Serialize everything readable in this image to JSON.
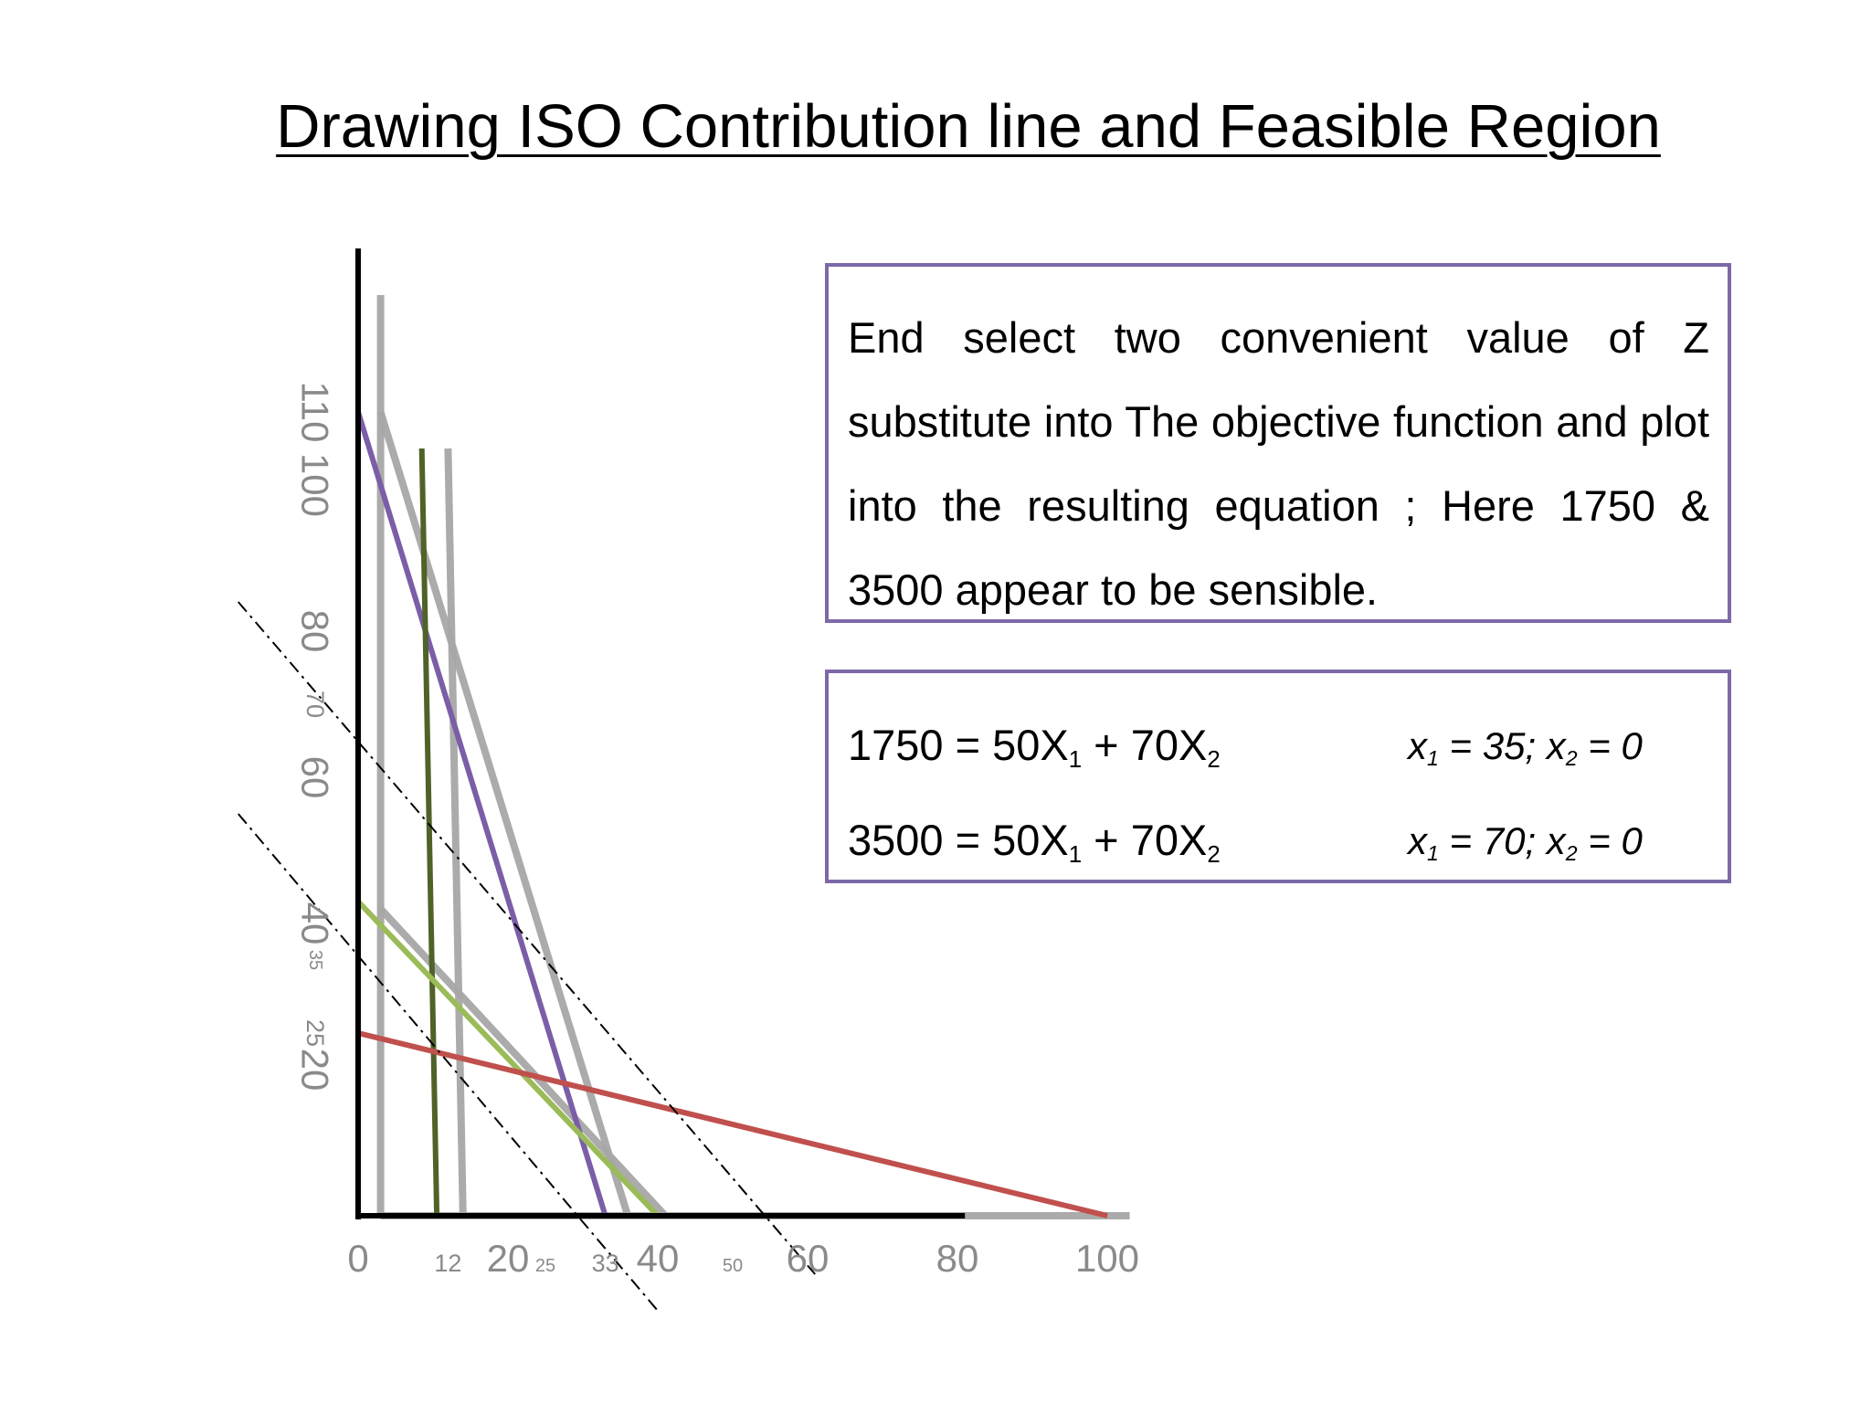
{
  "title": "Drawing ISO Contribution line and Feasible Region",
  "note": "End select two convenient value of Z substitute into The objective function and plot into the resulting equation ; Here 1750 & 3500 appear to be sensible.",
  "equations": [
    {
      "lhs": "1750 = 50X",
      "sub1": "1",
      "mid": " + 70X",
      "sub2": "2",
      "s_a": "x",
      "s_sub1": "1",
      "s_b": " = 35; x",
      "s_sub2": "2",
      "s_c": "= 0"
    },
    {
      "lhs": "3500 = 50X",
      "sub1": "1",
      "mid": " + 70X",
      "sub2": "2",
      "s_a": "x",
      "s_sub1": "1",
      "s_b": " = 70; x",
      "s_sub2": "2",
      "s_c": "= 0"
    }
  ],
  "colors": {
    "box_border": "#7d68a8",
    "purple": "#7b5ea7",
    "gray": "#a6a6a6",
    "dark_green": "#4f6228",
    "light_green": "#9bbb59",
    "red": "#c0504d",
    "axis": "#000000",
    "tick": "#8a8a8a"
  },
  "chart_data": {
    "type": "line",
    "x_ticks": [
      {
        "v": 0,
        "label": "0",
        "size": "large"
      },
      {
        "v": 12,
        "label": "12",
        "size": "small"
      },
      {
        "v": 20,
        "label": "20",
        "size": "large"
      },
      {
        "v": 25,
        "label": "25",
        "size": "tiny"
      },
      {
        "v": 33,
        "label": "33",
        "size": "small"
      },
      {
        "v": 40,
        "label": "40",
        "size": "large"
      },
      {
        "v": 50,
        "label": "50",
        "size": "tiny"
      },
      {
        "v": 60,
        "label": "60",
        "size": "large"
      },
      {
        "v": 80,
        "label": "80",
        "size": "large"
      },
      {
        "v": 100,
        "label": "100",
        "size": "large"
      }
    ],
    "y_ticks": [
      {
        "v": 20,
        "label": "20",
        "size": "large"
      },
      {
        "v": 25,
        "label": "25",
        "size": "small"
      },
      {
        "v": 35,
        "label": "35",
        "size": "tiny"
      },
      {
        "v": 40,
        "label": "40",
        "size": "large"
      },
      {
        "v": 60,
        "label": "60",
        "size": "large"
      },
      {
        "v": 70,
        "label": "70",
        "size": "small"
      },
      {
        "v": 80,
        "label": "80",
        "size": "large"
      },
      {
        "v": 100,
        "label": "100",
        "size": "large"
      },
      {
        "v": 110,
        "label": "110",
        "size": "large"
      }
    ],
    "series": [
      {
        "color": "gray",
        "style": "solid",
        "points": [
          [
            3,
            126
          ],
          [
            3,
            0
          ]
        ]
      },
      {
        "color": "gray",
        "style": "solid",
        "points": [
          [
            3,
            110
          ],
          [
            36,
            0
          ]
        ]
      },
      {
        "color": "gray",
        "style": "solid",
        "points": [
          [
            12,
            105
          ],
          [
            14,
            0
          ]
        ]
      },
      {
        "color": "gray",
        "style": "solid",
        "points": [
          [
            3,
            42
          ],
          [
            41,
            0
          ]
        ]
      },
      {
        "color": "gray",
        "style": "solid",
        "points": [
          [
            3,
            0
          ],
          [
            103,
            0
          ]
        ]
      },
      {
        "color": "purple",
        "style": "solid",
        "points": [
          [
            0,
            110
          ],
          [
            33,
            0
          ]
        ]
      },
      {
        "color": "dark_green",
        "style": "solid",
        "points": [
          [
            8.5,
            105
          ],
          [
            10.5,
            0
          ]
        ]
      },
      {
        "color": "light_green",
        "style": "solid",
        "points": [
          [
            0,
            43
          ],
          [
            40,
            0
          ]
        ]
      },
      {
        "color": "red",
        "style": "solid",
        "points": [
          [
            0,
            25
          ],
          [
            100,
            0
          ]
        ]
      },
      {
        "color": "axis",
        "style": "dashdot",
        "points": [
          [
            -16,
            55
          ],
          [
            40,
            -13
          ]
        ]
      },
      {
        "color": "axis",
        "style": "dashdot",
        "points": [
          [
            -16,
            84
          ],
          [
            61,
            -8
          ]
        ]
      }
    ]
  }
}
